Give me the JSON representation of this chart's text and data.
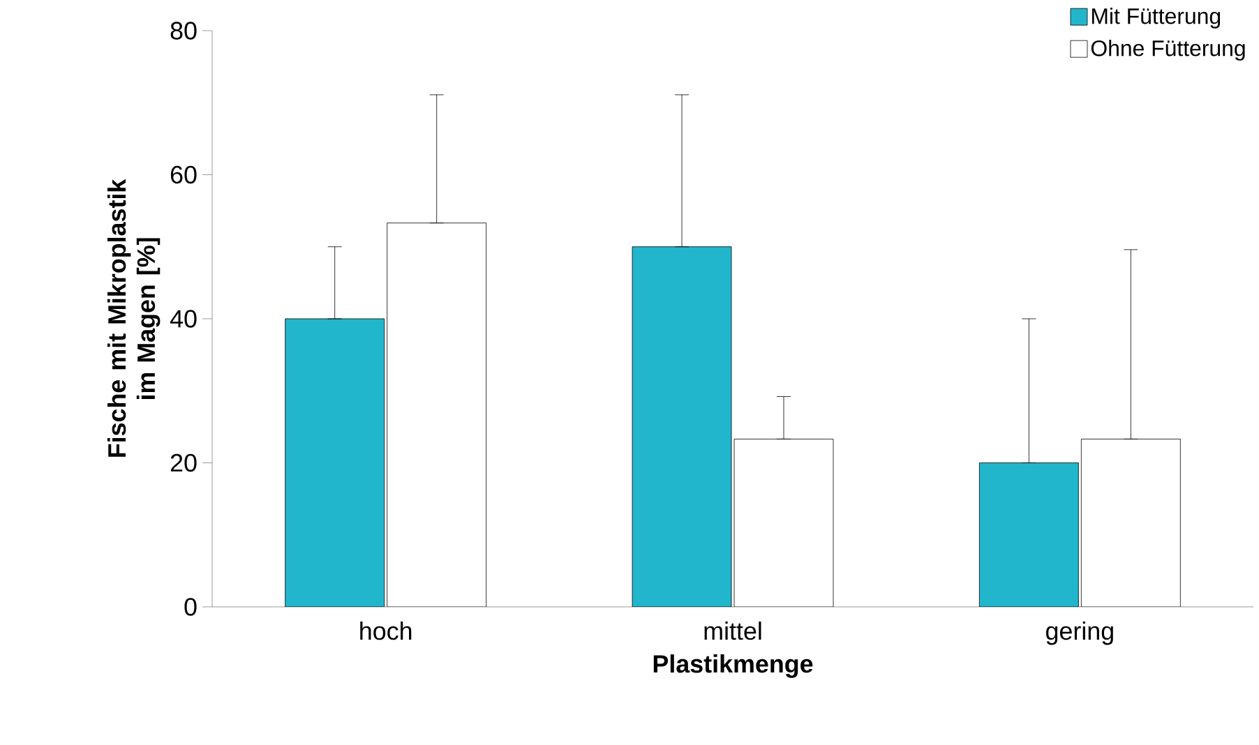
{
  "chart_data": {
    "type": "bar",
    "xlabel": "Plastikmenge",
    "ylabel": "Fische mit Mikroplastik im Magen [%]",
    "categories": [
      "hoch",
      "mittel",
      "gering"
    ],
    "series": [
      {
        "name": "Mit Fütterung",
        "color": "#22b6cc",
        "values": [
          40,
          50,
          20
        ],
        "errors": [
          [
            40,
            50
          ],
          [
            50,
            71.1
          ],
          [
            20,
            40
          ]
        ]
      },
      {
        "name": "Ohne Fütterung",
        "color": "#ffffff",
        "values": [
          53.3,
          23.3,
          23.3
        ],
        "errors": [
          [
            53.3,
            71.1
          ],
          [
            23.3,
            29.2
          ],
          [
            23.3,
            49.6
          ]
        ]
      }
    ],
    "ylim": [
      0,
      80
    ],
    "yticks": [
      0,
      20,
      40,
      60,
      80
    ],
    "grid": false,
    "legend": "top right"
  }
}
